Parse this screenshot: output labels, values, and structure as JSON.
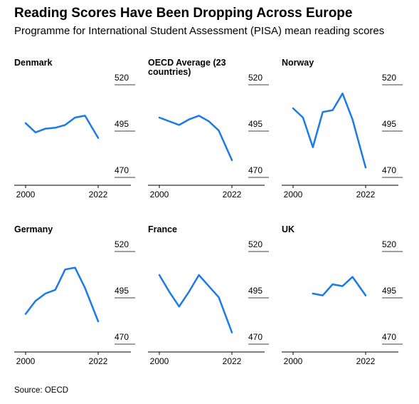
{
  "title": "Reading Scores Have Been Dropping Across Europe",
  "subtitle": "Programme for International Student Assessment (PISA) mean reading scores",
  "source": "Source: OECD",
  "line_color": "#1a7ae8",
  "chart_data": [
    {
      "type": "line",
      "title": "Denmark",
      "x": [
        2000,
        2003,
        2006,
        2009,
        2012,
        2015,
        2018,
        2022
      ],
      "y": [
        497,
        492,
        494,
        494.5,
        496,
        500,
        501,
        489
      ],
      "ylim": [
        470,
        520
      ],
      "yticks": [
        520,
        495,
        470
      ],
      "xticks": [
        2000,
        2022
      ]
    },
    {
      "type": "line",
      "title": "OECD Average (23 countries)",
      "x": [
        2000,
        2006,
        2009,
        2012,
        2015,
        2018,
        2022
      ],
      "y": [
        500,
        496,
        499,
        501,
        498,
        493,
        477
      ],
      "ylim": [
        470,
        520
      ],
      "yticks": [
        520,
        495,
        470
      ],
      "xticks": [
        2000,
        2022
      ]
    },
    {
      "type": "line",
      "title": "Norway",
      "x": [
        2000,
        2003,
        2006,
        2009,
        2012,
        2015,
        2018,
        2022
      ],
      "y": [
        505,
        500,
        484,
        503,
        504,
        513,
        499,
        473
      ],
      "ylim": [
        470,
        520
      ],
      "yticks": [
        520,
        495,
        470
      ],
      "xticks": [
        2000,
        2022
      ]
    },
    {
      "type": "line",
      "title": "Germany",
      "x": [
        2000,
        2003,
        2006,
        2009,
        2012,
        2015,
        2018,
        2022
      ],
      "y": [
        484,
        491,
        495,
        497,
        508,
        509,
        498,
        480
      ],
      "ylim": [
        470,
        520
      ],
      "yticks": [
        520,
        495,
        470
      ],
      "xticks": [
        2000,
        2022
      ]
    },
    {
      "type": "line",
      "title": "France",
      "x": [
        2000,
        2003,
        2006,
        2009,
        2012,
        2015,
        2018,
        2022
      ],
      "y": [
        505,
        496,
        488,
        496,
        505,
        499,
        493,
        474
      ],
      "ylim": [
        470,
        520
      ],
      "yticks": [
        520,
        495,
        470
      ],
      "xticks": [
        2000,
        2022
      ]
    },
    {
      "type": "line",
      "title": "UK",
      "x": [
        2006,
        2009,
        2012,
        2015,
        2018,
        2022
      ],
      "y": [
        495,
        494,
        500,
        499,
        504,
        494
      ],
      "ylim": [
        470,
        520
      ],
      "yticks": [
        520,
        495,
        470
      ],
      "xticks": [
        2000,
        2022
      ]
    }
  ]
}
